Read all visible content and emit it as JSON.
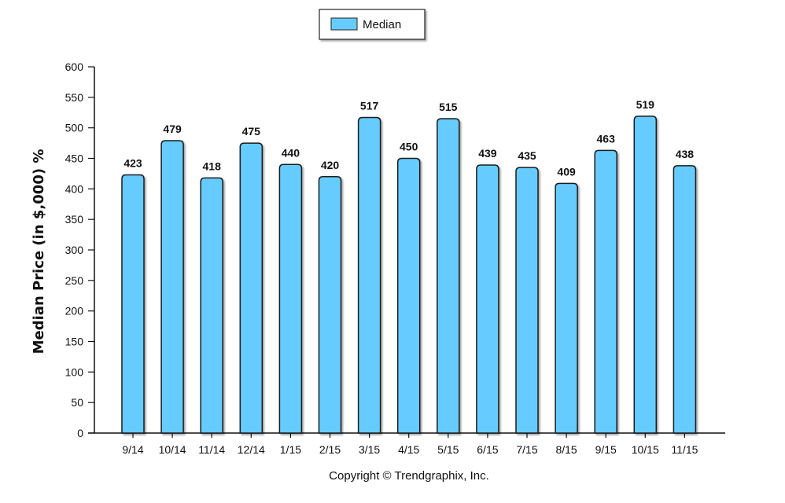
{
  "chart_data": {
    "type": "bar",
    "categories": [
      "9/14",
      "10/14",
      "11/14",
      "12/14",
      "1/15",
      "2/15",
      "3/15",
      "4/15",
      "5/15",
      "6/15",
      "7/15",
      "8/15",
      "9/15",
      "10/15",
      "11/15"
    ],
    "series": [
      {
        "name": "Median",
        "values": [
          423,
          479,
          418,
          475,
          440,
          420,
          517,
          450,
          515,
          439,
          435,
          409,
          463,
          519,
          438
        ]
      }
    ],
    "ylabel": "Median Price (in $,000) %",
    "xlabel": "",
    "ylim": [
      0,
      600
    ],
    "yticks": [
      0,
      50,
      100,
      150,
      200,
      250,
      300,
      350,
      400,
      450,
      500,
      550,
      600
    ],
    "grid": false,
    "legend": "top-center",
    "bar_color": "#66ccff",
    "bar_edge_color": "#1a1a1a",
    "data_labels": true
  },
  "footer": {
    "copyright": "Copyright © Trendgraphix, Inc."
  }
}
